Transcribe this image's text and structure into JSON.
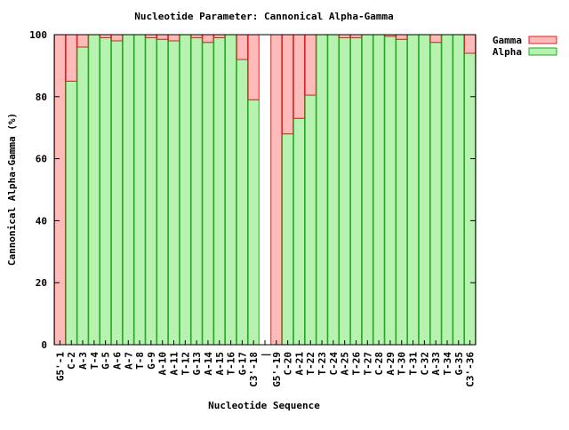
{
  "chart_data": {
    "type": "bar",
    "stacked": true,
    "title": "Nucleotide Parameter: Cannonical Alpha-Gamma",
    "xlabel": "Nucleotide Sequence",
    "ylabel": "Cannonical Alpha-Gamma (%)",
    "ylim": [
      0,
      100
    ],
    "yticks": [
      0,
      20,
      40,
      60,
      80,
      100
    ],
    "legend_position": "top-right, outside plot",
    "categories": [
      "G5'-1",
      "C-2",
      "A-3",
      "T-4",
      "G-5",
      "A-6",
      "A-7",
      "T-8",
      "G-9",
      "A-10",
      "A-11",
      "T-12",
      "G-13",
      "A-14",
      "A-15",
      "T-16",
      "G-17",
      "C3'-18",
      "|",
      "G5'-19",
      "C-20",
      "A-21",
      "T-22",
      "T-23",
      "C-24",
      "A-25",
      "T-26",
      "T-27",
      "C-28",
      "A-29",
      "T-30",
      "T-31",
      "C-32",
      "A-33",
      "T-34",
      "G-35",
      "C3'-36"
    ],
    "series": [
      {
        "name": "Alpha",
        "color": "#b8f2b0",
        "stroke": "#22aa22",
        "values": [
          0,
          85,
          96,
          100,
          99,
          98,
          100,
          100,
          99,
          98.5,
          98,
          100,
          99,
          97.5,
          99,
          100,
          92,
          79,
          null,
          0,
          68,
          73,
          80.5,
          100,
          100,
          99,
          99,
          100,
          100,
          99.5,
          98.5,
          100,
          100,
          97.5,
          100,
          100,
          94
        ]
      },
      {
        "name": "Gamma",
        "color": "#ffbaba",
        "stroke": "#dd2222",
        "values": [
          100,
          15,
          4,
          0,
          1,
          2,
          0,
          0,
          1,
          1.5,
          2,
          0,
          1,
          2.5,
          1,
          0,
          8,
          21,
          null,
          100,
          32,
          27,
          19.5,
          0,
          0,
          1,
          1,
          0,
          0,
          0.5,
          1.5,
          0,
          0,
          2.5,
          0,
          0,
          6
        ]
      }
    ]
  }
}
